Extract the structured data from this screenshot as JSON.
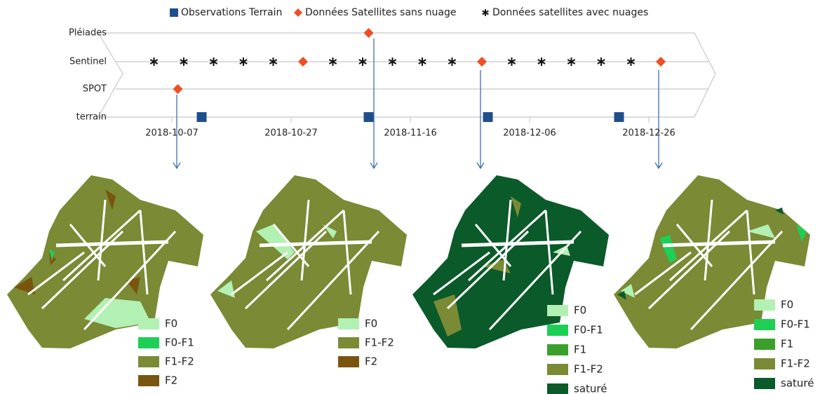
{
  "chart_data": {
    "type": "timeline",
    "categories": [
      "Pléiades",
      "Sentinel",
      "SPOT",
      "terrain"
    ],
    "xlim": [
      "2018-09-29",
      "2019-01-03"
    ],
    "xticks": [
      "2018-10-07",
      "2018-10-27",
      "2018-11-16",
      "2018-12-06",
      "2018-12-26"
    ],
    "series": [
      {
        "name": "Observations Terrain",
        "color": "#1f4e8c",
        "marker": "square",
        "x": [
          "2018-10-12",
          "2018-11-09",
          "2018-11-29",
          "2018-12-21"
        ],
        "y": [
          "terrain",
          "terrain",
          "terrain",
          "terrain"
        ]
      },
      {
        "name": "Données Satellites sans nuage",
        "color": "#f04e23",
        "marker": "diamond",
        "x": [
          "2018-11-09",
          "2018-10-29",
          "2018-11-28",
          "2018-12-28",
          "2018-10-08"
        ],
        "y": [
          "Pléiades",
          "Sentinel",
          "Sentinel",
          "Sentinel",
          "SPOT"
        ]
      },
      {
        "name": "Données satellites avec nuages",
        "color": "#111111",
        "marker": "asterisk",
        "x": [
          "2018-10-04",
          "2018-10-09",
          "2018-10-14",
          "2018-10-19",
          "2018-10-24",
          "2018-11-03",
          "2018-11-08",
          "2018-11-13",
          "2018-11-18",
          "2018-11-23",
          "2018-12-03",
          "2018-12-08",
          "2018-12-13",
          "2018-12-18",
          "2018-12-23"
        ],
        "y": [
          "Sentinel",
          "Sentinel",
          "Sentinel",
          "Sentinel",
          "Sentinel",
          "Sentinel",
          "Sentinel",
          "Sentinel",
          "Sentinel",
          "Sentinel",
          "Sentinel",
          "Sentinel",
          "Sentinel",
          "Sentinel",
          "Sentinel"
        ]
      }
    ]
  },
  "maps": [
    {
      "legend": [
        {
          "label": "F0",
          "color": "#b3f0b3"
        },
        {
          "label": "F0-F1",
          "color": "#1ecf55"
        },
        {
          "label": "F1-F2",
          "color": "#7a8a35"
        },
        {
          "label": "F2",
          "color": "#7a5510"
        }
      ]
    },
    {
      "legend": [
        {
          "label": "F0",
          "color": "#b3f0b3"
        },
        {
          "label": "F1-F2",
          "color": "#7a8a35"
        },
        {
          "label": "F2",
          "color": "#7a5510"
        }
      ]
    },
    {
      "legend": [
        {
          "label": "F0",
          "color": "#b3f0b3"
        },
        {
          "label": "F0-F1",
          "color": "#1ecf55"
        },
        {
          "label": "F1",
          "color": "#3aa02a"
        },
        {
          "label": "F1-F2",
          "color": "#7a8a35"
        },
        {
          "label": "saturé",
          "color": "#0b5a2a"
        }
      ]
    },
    {
      "legend": [
        {
          "label": "F0",
          "color": "#b3f0b3"
        },
        {
          "label": "F0-F1",
          "color": "#1ecf55"
        },
        {
          "label": "F1",
          "color": "#3aa02a"
        },
        {
          "label": "F1-F2",
          "color": "#7a8a35"
        },
        {
          "label": "saturé",
          "color": "#0b5a2a"
        }
      ]
    }
  ]
}
